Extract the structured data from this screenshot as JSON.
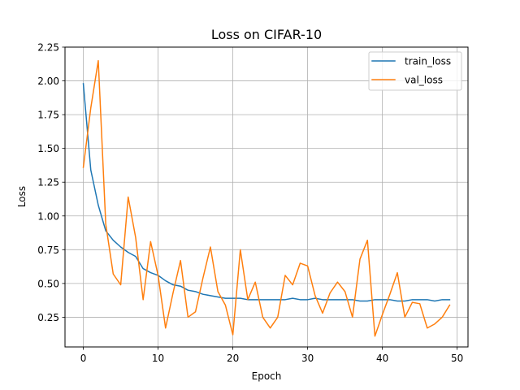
{
  "chart_data": {
    "type": "line",
    "title": "Loss on CIFAR-10",
    "xlabel": "Epoch",
    "ylabel": "Loss",
    "xlim": [
      -2.45,
      51.45
    ],
    "ylim": [
      0.03,
      2.25
    ],
    "xticks": [
      0,
      10,
      20,
      30,
      40,
      50
    ],
    "yticks": [
      0.25,
      0.5,
      0.75,
      1.0,
      1.25,
      1.5,
      1.75,
      2.0,
      2.25
    ],
    "xtick_labels": [
      "0",
      "10",
      "20",
      "30",
      "40",
      "50"
    ],
    "ytick_labels": [
      "0.25",
      "0.50",
      "0.75",
      "1.00",
      "1.25",
      "1.50",
      "1.75",
      "2.00",
      "2.25"
    ],
    "grid": true,
    "legend_position": "top-right",
    "x": [
      0,
      1,
      2,
      3,
      4,
      5,
      6,
      7,
      8,
      9,
      10,
      11,
      12,
      13,
      14,
      15,
      16,
      17,
      18,
      19,
      20,
      21,
      22,
      23,
      24,
      25,
      26,
      27,
      28,
      29,
      30,
      31,
      32,
      33,
      34,
      35,
      36,
      37,
      38,
      39,
      40,
      41,
      42,
      43,
      44,
      45,
      46,
      47,
      48,
      49
    ],
    "series": [
      {
        "name": "train_loss",
        "color": "#1f77b4",
        "values": [
          1.98,
          1.34,
          1.08,
          0.89,
          0.82,
          0.77,
          0.73,
          0.7,
          0.61,
          0.58,
          0.56,
          0.52,
          0.49,
          0.48,
          0.45,
          0.44,
          0.42,
          0.41,
          0.4,
          0.39,
          0.39,
          0.39,
          0.38,
          0.38,
          0.38,
          0.38,
          0.38,
          0.38,
          0.39,
          0.38,
          0.38,
          0.39,
          0.38,
          0.38,
          0.38,
          0.38,
          0.38,
          0.37,
          0.37,
          0.38,
          0.38,
          0.38,
          0.37,
          0.37,
          0.38,
          0.38,
          0.38,
          0.37,
          0.38,
          0.38
        ]
      },
      {
        "name": "val_loss",
        "color": "#ff7f0e",
        "values": [
          1.36,
          1.8,
          2.15,
          0.94,
          0.57,
          0.49,
          1.14,
          0.84,
          0.38,
          0.81,
          0.56,
          0.17,
          0.43,
          0.67,
          0.25,
          0.29,
          0.54,
          0.77,
          0.44,
          0.34,
          0.12,
          0.75,
          0.38,
          0.51,
          0.25,
          0.17,
          0.25,
          0.56,
          0.49,
          0.65,
          0.63,
          0.41,
          0.28,
          0.43,
          0.51,
          0.44,
          0.25,
          0.68,
          0.82,
          0.11,
          0.27,
          0.42,
          0.58,
          0.25,
          0.36,
          0.35,
          0.17,
          0.2,
          0.25,
          0.34
        ]
      }
    ]
  }
}
